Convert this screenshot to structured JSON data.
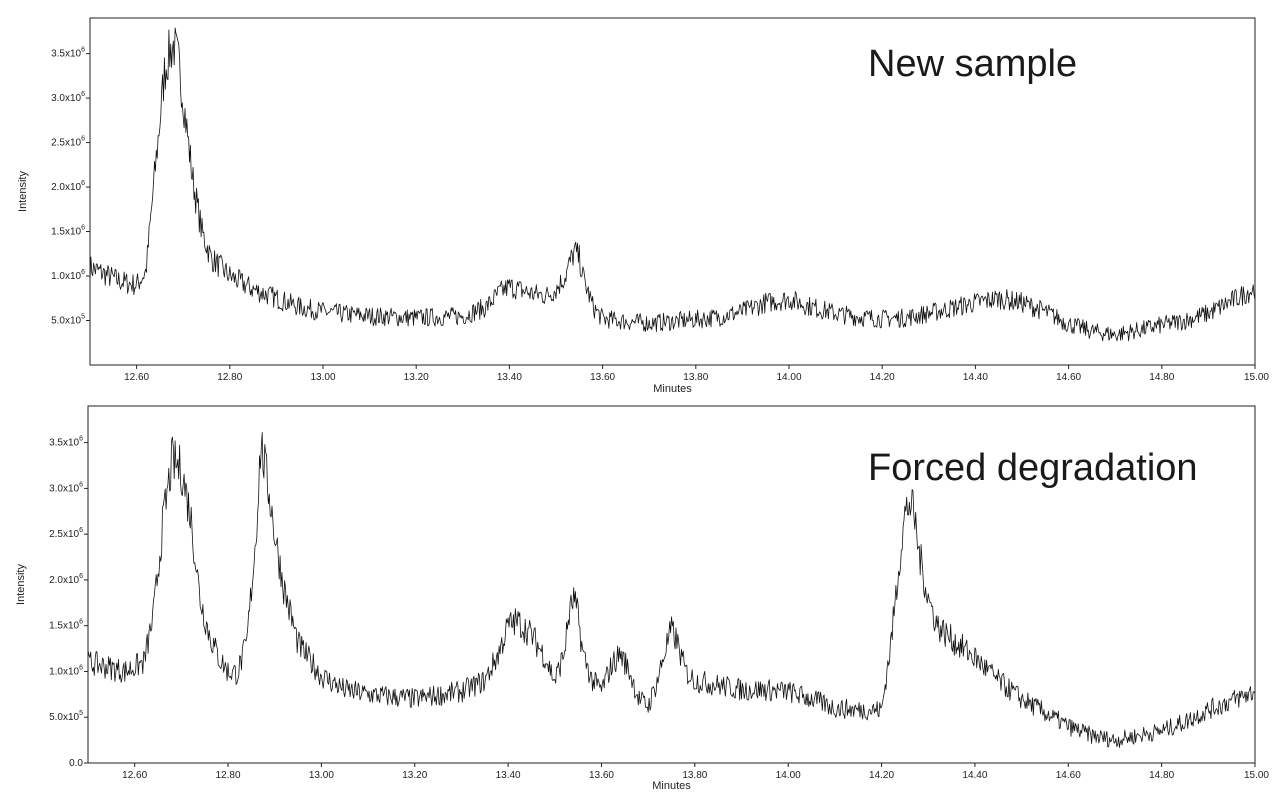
{
  "chart_data": [
    {
      "type": "line",
      "title": "New sample",
      "xlabel": "Minutes",
      "ylabel": "Intensity",
      "xlim": [
        12.5,
        15.0
      ],
      "ylim": [
        0,
        3900000
      ],
      "grid": false,
      "x_ticks": [
        12.6,
        12.8,
        13.0,
        13.2,
        13.4,
        13.6,
        13.8,
        14.0,
        14.2,
        14.4,
        14.6,
        14.8,
        15.0
      ],
      "x_tick_labels": [
        "12.60",
        "12.80",
        "13.00",
        "13.20",
        "13.40",
        "13.60",
        "13.80",
        "14.00",
        "14.20",
        "14.40",
        "14.60",
        "14.80",
        "15.00"
      ],
      "y_ticks": [
        {
          "value": 500000,
          "mantissa": "5.0x10",
          "exp": "5"
        },
        {
          "value": 1000000,
          "mantissa": "1.0x10",
          "exp": "6"
        },
        {
          "value": 1500000,
          "mantissa": "1.5x10",
          "exp": "6"
        },
        {
          "value": 2000000,
          "mantissa": "2.0x10",
          "exp": "6"
        },
        {
          "value": 2500000,
          "mantissa": "2.5x10",
          "exp": "6"
        },
        {
          "value": 3000000,
          "mantissa": "3.0x10",
          "exp": "6"
        },
        {
          "value": 3500000,
          "mantissa": "3.5x10",
          "exp": "6"
        }
      ],
      "series": [
        {
          "x": [
            12.5,
            12.52,
            12.54,
            12.56,
            12.58,
            12.6,
            12.62,
            12.64,
            12.66,
            12.67,
            12.68,
            12.69,
            12.7,
            12.72,
            12.74,
            12.76,
            12.8,
            12.85,
            12.9,
            12.95,
            13.0,
            13.05,
            13.1,
            13.2,
            13.3,
            13.35,
            13.38,
            13.4,
            13.42,
            13.45,
            13.48,
            13.5,
            13.52,
            13.53,
            13.54,
            13.55,
            13.56,
            13.58,
            13.6,
            13.65,
            13.7,
            13.75,
            13.8,
            13.85,
            13.9,
            13.95,
            14.0,
            14.05,
            14.1,
            14.15,
            14.2,
            14.25,
            14.3,
            14.35,
            14.4,
            14.45,
            14.5,
            14.55,
            14.6,
            14.65,
            14.7,
            14.75,
            14.8,
            14.85,
            14.9,
            14.95,
            15.0
          ],
          "y": [
            1100000,
            1050000,
            1000000,
            950000,
            920000,
            900000,
            1050000,
            2200000,
            3300000,
            3500000,
            3600000,
            3400000,
            3000000,
            2100000,
            1500000,
            1200000,
            1000000,
            850000,
            750000,
            650000,
            600000,
            570000,
            550000,
            530000,
            550000,
            650000,
            820000,
            880000,
            850000,
            800000,
            780000,
            850000,
            1000000,
            1150000,
            1280000,
            1200000,
            950000,
            650000,
            520000,
            490000,
            470000,
            490000,
            510000,
            540000,
            600000,
            700000,
            740000,
            650000,
            580000,
            540000,
            520000,
            530000,
            580000,
            640000,
            700000,
            750000,
            700000,
            600000,
            460000,
            380000,
            340000,
            390000,
            450000,
            500000,
            580000,
            720000,
            860000
          ]
        }
      ]
    },
    {
      "type": "line",
      "title": "Forced degradation",
      "xlabel": "Minutes",
      "ylabel": "Intensity",
      "xlim": [
        12.5,
        15.0
      ],
      "ylim": [
        0,
        3900000
      ],
      "grid": false,
      "x_ticks": [
        12.6,
        12.8,
        13.0,
        13.2,
        13.4,
        13.6,
        13.8,
        14.0,
        14.2,
        14.4,
        14.6,
        14.8,
        15.0
      ],
      "x_tick_labels": [
        "12.60",
        "12.80",
        "13.00",
        "13.20",
        "13.40",
        "13.60",
        "13.80",
        "14.00",
        "14.20",
        "14.40",
        "14.60",
        "14.80",
        "15.00"
      ],
      "y_ticks": [
        {
          "value": 0,
          "mantissa": "0.0",
          "exp": ""
        },
        {
          "value": 500000,
          "mantissa": "5.0x10",
          "exp": "5"
        },
        {
          "value": 1000000,
          "mantissa": "1.0x10",
          "exp": "6"
        },
        {
          "value": 1500000,
          "mantissa": "1.5x10",
          "exp": "6"
        },
        {
          "value": 2000000,
          "mantissa": "2.0x10",
          "exp": "6"
        },
        {
          "value": 2500000,
          "mantissa": "2.5x10",
          "exp": "6"
        },
        {
          "value": 3000000,
          "mantissa": "3.0x10",
          "exp": "6"
        },
        {
          "value": 3500000,
          "mantissa": "3.5x10",
          "exp": "6"
        }
      ],
      "series": [
        {
          "x": [
            12.5,
            12.54,
            12.58,
            12.62,
            12.64,
            12.66,
            12.68,
            12.7,
            12.72,
            12.74,
            12.76,
            12.78,
            12.8,
            12.82,
            12.84,
            12.86,
            12.87,
            12.88,
            12.89,
            12.9,
            12.92,
            12.95,
            13.0,
            13.05,
            13.1,
            13.2,
            13.3,
            13.35,
            13.38,
            13.4,
            13.42,
            13.45,
            13.48,
            13.5,
            13.52,
            13.53,
            13.54,
            13.55,
            13.56,
            13.58,
            13.6,
            13.62,
            13.64,
            13.66,
            13.68,
            13.7,
            13.72,
            13.74,
            13.75,
            13.76,
            13.78,
            13.8,
            13.85,
            13.9,
            13.95,
            14.0,
            14.05,
            14.1,
            14.15,
            14.2,
            14.22,
            14.24,
            14.25,
            14.26,
            14.27,
            14.28,
            14.3,
            14.32,
            14.35,
            14.4,
            14.45,
            14.5,
            14.55,
            14.6,
            14.65,
            14.7,
            14.75,
            14.8,
            14.85,
            14.9,
            14.95,
            15.0
          ],
          "y": [
            1100000,
            1050000,
            1000000,
            1100000,
            1600000,
            2600000,
            3300000,
            3200000,
            2700000,
            1800000,
            1400000,
            1150000,
            1000000,
            980000,
            1300000,
            2500000,
            3500000,
            3200000,
            2900000,
            2500000,
            1900000,
            1300000,
            950000,
            800000,
            750000,
            700000,
            780000,
            900000,
            1200000,
            1500000,
            1550000,
            1400000,
            1150000,
            900000,
            1200000,
            1600000,
            1800000,
            1600000,
            1200000,
            900000,
            800000,
            1050000,
            1200000,
            1000000,
            700000,
            620000,
            900000,
            1300000,
            1450000,
            1350000,
            1000000,
            900000,
            850000,
            800000,
            800000,
            780000,
            700000,
            600000,
            580000,
            580000,
            1300000,
            2300000,
            2700000,
            2850000,
            2700000,
            2300000,
            1800000,
            1500000,
            1350000,
            1150000,
            900000,
            700000,
            550000,
            400000,
            300000,
            250000,
            300000,
            350000,
            450000,
            580000,
            680000,
            780000
          ]
        }
      ]
    }
  ]
}
